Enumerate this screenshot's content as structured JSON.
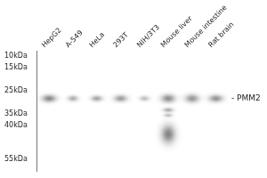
{
  "chart_data": {
    "type": "blot",
    "categories": [
      "HepG2",
      "A-549",
      "HeLa",
      "293T",
      "NIH/3T3",
      "Mouse liver",
      "Mouse intestine",
      "Rat brain"
    ],
    "bands": [
      {
        "category": "HepG2",
        "y": 28.5,
        "width": 0.52,
        "height": 2.8,
        "intensity": 0.72
      },
      {
        "category": "A-549",
        "y": 28.5,
        "width": 0.38,
        "height": 2.2,
        "intensity": 0.5
      },
      {
        "category": "HeLa",
        "y": 28.5,
        "width": 0.42,
        "height": 2.2,
        "intensity": 0.55
      },
      {
        "category": "293T",
        "y": 28.5,
        "width": 0.48,
        "height": 2.6,
        "intensity": 0.6
      },
      {
        "category": "NIH/3T3",
        "y": 28.5,
        "width": 0.36,
        "height": 2.0,
        "intensity": 0.4
      },
      {
        "category": "Mouse liver",
        "y": 28.5,
        "width": 0.52,
        "height": 3.2,
        "intensity": 0.68
      },
      {
        "category": "Mouse intestine",
        "y": 28.5,
        "width": 0.52,
        "height": 3.2,
        "intensity": 0.62
      },
      {
        "category": "Rat brain",
        "y": 28.5,
        "width": 0.52,
        "height": 2.8,
        "intensity": 0.65
      },
      {
        "category": "Mouse liver",
        "y": 44,
        "width": 0.52,
        "height": 7.0,
        "intensity": 0.75
      },
      {
        "category": "Mouse liver",
        "y": 33.5,
        "width": 0.38,
        "height": 1.8,
        "intensity": 0.5
      },
      {
        "category": "Mouse liver",
        "y": 35.8,
        "width": 0.32,
        "height": 1.4,
        "intensity": 0.4
      }
    ],
    "color": "#000000",
    "ylim": [
      60,
      8
    ],
    "yticks": [
      {
        "value": 55,
        "label": "55kDa"
      },
      {
        "value": 40,
        "label": "40kDa"
      },
      {
        "value": 35,
        "label": "35kDa"
      },
      {
        "value": 25,
        "label": "25kDa"
      },
      {
        "value": 15,
        "label": "15kDa"
      },
      {
        "value": 10,
        "label": "10kDa"
      }
    ],
    "grid": false,
    "annotations": [
      {
        "text": "- PMM2",
        "y": 28.5
      }
    ]
  }
}
